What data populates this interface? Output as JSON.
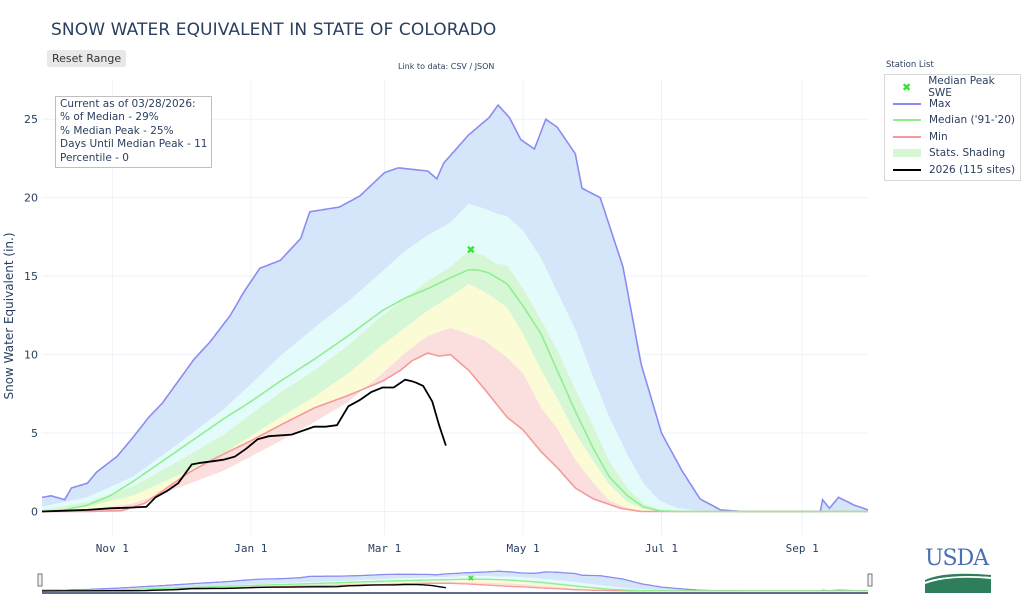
{
  "page": {
    "title": "SNOW WATER EQUIVALENT IN STATE OF COLORADO",
    "reset_button": "Reset Range",
    "link_prefix": "Link to data: ",
    "link_csv": "CSV",
    "link_sep": " / ",
    "link_json": "JSON"
  },
  "info_box": {
    "line1": "Current as of 03/28/2026:",
    "line2": "% of Median - 29%",
    "line3": "% Median Peak - 25%",
    "line4": "Days Until Median Peak - 11",
    "line5": "Percentile - 0"
  },
  "legend": {
    "title": "Station List",
    "items": [
      {
        "label": "Median Peak SWE",
        "symbol": "x-marker",
        "color": "#37e137"
      },
      {
        "label": "Max",
        "symbol": "line",
        "color": "#8c8cf0"
      },
      {
        "label": "Median ('91-'20)",
        "symbol": "line",
        "color": "#8ef08e"
      },
      {
        "label": "Min",
        "symbol": "line",
        "color": "#f49a9a"
      },
      {
        "label": "Stats. Shading",
        "symbol": "shade",
        "color": "#d6f7d6"
      },
      {
        "label": "2026 (115 sites)",
        "symbol": "line",
        "color": "#000000"
      }
    ]
  },
  "logo": {
    "text": "USDA"
  },
  "chart_data": {
    "type": "area",
    "title": "SNOW WATER EQUIVALENT IN STATE OF COLORADO",
    "xlabel": "",
    "ylabel": "Snow Water Equivalent (in.)",
    "x_unit": "days since Oct 1 (water year)",
    "xlim": [
      0,
      364
    ],
    "ylim": [
      -1.5,
      27.5
    ],
    "yticks": [
      0,
      5,
      10,
      15,
      20,
      25
    ],
    "xticks": [
      {
        "day": 31,
        "label": "Nov 1"
      },
      {
        "day": 92,
        "label": "Jan 1"
      },
      {
        "day": 151,
        "label": "Mar 1"
      },
      {
        "day": 212,
        "label": "May 1"
      },
      {
        "day": 273,
        "label": "Jul 1"
      },
      {
        "day": 335,
        "label": "Sep 1"
      }
    ],
    "grid": true,
    "legend_position": "right",
    "colors": {
      "max": "#8c8cf0",
      "median": "#8ef08e",
      "min": "#f49a9a",
      "current": "#000000",
      "peak_marker": "#37e137",
      "band_max": "#d6e6fa",
      "band_90": "#e4fbfb",
      "band_70": "#d6f7d6",
      "band_50": "#fbfbd6",
      "band_30": "#fbdede"
    },
    "series": [
      {
        "name": "Max",
        "x": [
          0,
          4,
          10,
          13,
          20,
          24,
          33,
          40,
          47,
          53,
          60,
          67,
          74,
          83,
          89,
          96,
          105,
          114,
          118,
          131,
          140,
          151,
          157,
          170,
          174,
          177,
          188,
          197,
          201,
          206,
          211,
          217,
          222,
          227,
          235,
          238,
          246,
          256,
          264,
          273,
          282,
          290,
          299,
          308,
          343,
          344,
          347,
          351,
          358,
          364
        ],
        "y": [
          0.9,
          1.0,
          0.75,
          1.5,
          1.8,
          2.5,
          3.5,
          4.7,
          6.0,
          6.9,
          8.3,
          9.7,
          10.8,
          12.5,
          14.0,
          15.5,
          16.0,
          17.4,
          19.1,
          19.4,
          20.1,
          21.6,
          21.9,
          21.7,
          21.2,
          22.2,
          24.0,
          25.1,
          25.9,
          25.1,
          23.7,
          23.1,
          25.0,
          24.5,
          22.8,
          20.6,
          20.0,
          15.6,
          9.4,
          5.0,
          2.6,
          0.8,
          0.1,
          0.0,
          0.0,
          0.75,
          0.2,
          0.9,
          0.4,
          0.1
        ]
      },
      {
        "name": "Median ('91-'20)",
        "x": [
          0,
          10,
          20,
          30,
          40,
          50,
          60,
          70,
          80,
          92,
          105,
          120,
          135,
          150,
          160,
          170,
          180,
          188,
          192,
          197,
          205,
          212,
          220,
          227,
          235,
          243,
          250,
          258,
          265,
          272,
          280,
          364
        ],
        "y": [
          0.0,
          0.1,
          0.4,
          1.0,
          1.9,
          2.9,
          3.9,
          4.9,
          5.9,
          7.0,
          8.3,
          9.7,
          11.2,
          12.8,
          13.6,
          14.2,
          14.9,
          15.4,
          15.4,
          15.2,
          14.5,
          13.1,
          11.3,
          9.0,
          6.4,
          4.0,
          2.2,
          1.0,
          0.3,
          0.05,
          0.0,
          0.0
        ]
      },
      {
        "name": "Min",
        "x": [
          0,
          20,
          35,
          45,
          55,
          65,
          75,
          92,
          105,
          120,
          135,
          150,
          158,
          163,
          170,
          175,
          180,
          188,
          195,
          205,
          212,
          220,
          227,
          235,
          243,
          255,
          264,
          364
        ],
        "y": [
          0.0,
          0.0,
          0.05,
          0.5,
          1.5,
          2.5,
          3.3,
          4.5,
          5.5,
          6.6,
          7.4,
          8.3,
          9.0,
          9.6,
          10.1,
          9.9,
          10.0,
          9.0,
          7.8,
          6.0,
          5.2,
          3.8,
          2.8,
          1.5,
          0.8,
          0.2,
          0.0,
          0.0
        ]
      },
      {
        "name": "2026 (115 sites)",
        "x": [
          0,
          10,
          20,
          30,
          40,
          46,
          50,
          55,
          60,
          66,
          70,
          75,
          80,
          85,
          90,
          95,
          100,
          110,
          120,
          125,
          130,
          135,
          140,
          145,
          150,
          155,
          160,
          163,
          165,
          168,
          172,
          175,
          178
        ],
        "y": [
          0.0,
          0.05,
          0.1,
          0.2,
          0.25,
          0.3,
          0.9,
          1.3,
          1.8,
          3.0,
          3.1,
          3.2,
          3.3,
          3.5,
          4.0,
          4.6,
          4.8,
          4.9,
          5.4,
          5.4,
          5.5,
          6.7,
          7.1,
          7.6,
          7.9,
          7.9,
          8.4,
          8.3,
          8.2,
          8.0,
          7.0,
          5.5,
          4.2
        ]
      }
    ],
    "bands": [
      {
        "name": "90th pct",
        "x": [
          0,
          20,
          40,
          60,
          80,
          92,
          105,
          120,
          135,
          150,
          160,
          170,
          180,
          188,
          195,
          200,
          205,
          212,
          220,
          227,
          235,
          243,
          250,
          258,
          265,
          272,
          280,
          290,
          300,
          364
        ],
        "y": [
          0.3,
          0.9,
          2.2,
          4.3,
          6.5,
          8.1,
          9.9,
          11.7,
          13.4,
          15.3,
          16.6,
          17.6,
          18.4,
          19.6,
          19.3,
          19.0,
          18.8,
          17.9,
          16.1,
          14.0,
          11.6,
          8.5,
          6.0,
          3.6,
          1.8,
          0.7,
          0.2,
          0.05,
          0.0,
          0.0
        ]
      },
      {
        "name": "70th pct",
        "x": [
          0,
          20,
          40,
          60,
          80,
          92,
          105,
          120,
          135,
          150,
          160,
          170,
          180,
          188,
          195,
          200,
          205,
          212,
          220,
          227,
          235,
          243,
          250,
          258,
          265,
          272,
          280,
          364
        ],
        "y": [
          0.1,
          0.6,
          1.6,
          3.2,
          4.9,
          6.2,
          7.6,
          9.0,
          10.6,
          12.5,
          13.6,
          14.7,
          15.6,
          16.6,
          16.3,
          15.8,
          15.7,
          14.2,
          12.2,
          10.3,
          7.8,
          5.4,
          3.2,
          1.5,
          0.5,
          0.1,
          0.0,
          0.0
        ]
      },
      {
        "name": "50th/30th pct",
        "x": [
          0,
          20,
          40,
          60,
          80,
          92,
          105,
          120,
          135,
          150,
          160,
          170,
          180,
          188,
          195,
          205,
          212,
          220,
          227,
          235,
          243,
          250,
          258,
          265,
          272,
          364
        ],
        "y": [
          0.05,
          0.3,
          1.0,
          2.3,
          3.7,
          4.8,
          6.0,
          7.3,
          8.8,
          10.6,
          11.7,
          12.8,
          13.7,
          14.5,
          14.0,
          13.0,
          11.3,
          9.0,
          7.2,
          5.0,
          3.2,
          1.7,
          0.6,
          0.15,
          0.0,
          0.0
        ]
      },
      {
        "name": "10th pct",
        "x": [
          0,
          20,
          40,
          60,
          80,
          92,
          105,
          120,
          135,
          150,
          160,
          170,
          180,
          188,
          195,
          205,
          212,
          220,
          227,
          235,
          243,
          250,
          258,
          265,
          364
        ],
        "y": [
          0.0,
          0.1,
          0.5,
          1.5,
          2.6,
          3.5,
          4.5,
          5.7,
          7.0,
          8.8,
          10.1,
          11.2,
          11.7,
          11.3,
          10.9,
          9.8,
          8.8,
          6.6,
          5.3,
          3.3,
          1.8,
          0.7,
          0.2,
          0.0,
          0.0
        ]
      }
    ],
    "median_peak": {
      "day": 189,
      "value": 16.7,
      "label": "Median Peak SWE"
    },
    "current": {
      "date": "03/28/2026",
      "value": 4.2
    }
  }
}
